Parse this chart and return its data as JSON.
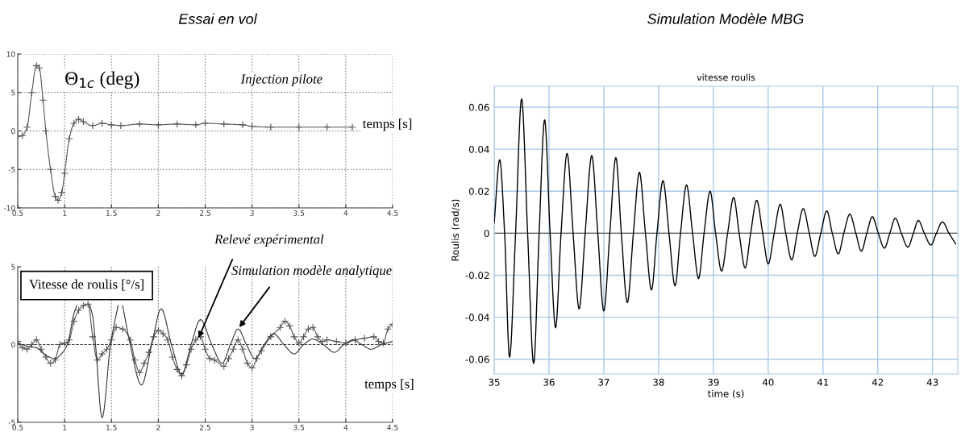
{
  "chart_data": [
    {
      "type": "line",
      "title": "Essai en vol",
      "xlim": [
        0.5,
        4.5
      ],
      "xticks": [
        0.5,
        1,
        1.5,
        2,
        2.5,
        3,
        3.5,
        4,
        4.5
      ],
      "ylim": [
        -10,
        10
      ],
      "yticks": [
        -10,
        -5,
        0,
        5,
        10
      ],
      "grid": true,
      "annotations": [
        "Θ$_{1c}$ (deg)",
        "Injection pilote",
        "temps [s]"
      ],
      "series": [
        {
          "color": "#555555",
          "marker": "cross",
          "x": [
            0.5,
            0.55,
            0.6,
            0.65,
            0.7,
            0.73,
            0.77,
            0.8,
            0.85,
            0.9,
            0.93,
            0.97,
            1.0,
            1.05,
            1.1,
            1.15,
            1.2,
            1.3,
            1.4,
            1.5,
            1.6,
            1.8,
            2.0,
            2.2,
            2.4,
            2.5,
            2.7,
            2.9,
            3.0,
            3.2,
            3.5,
            3.8,
            4.07
          ],
          "values": [
            -0.7,
            -0.6,
            0.5,
            5,
            8.5,
            8.2,
            4,
            0,
            -5,
            -8.5,
            -9,
            -8,
            -5.5,
            -1,
            1.0,
            1.5,
            1.2,
            0.7,
            1.0,
            0.8,
            0.7,
            0.9,
            0.8,
            0.9,
            0.8,
            1.0,
            0.9,
            0.8,
            0.6,
            0.5,
            0.5,
            0.5,
            0.5
          ]
        }
      ]
    },
    {
      "type": "line",
      "xlim": [
        0.5,
        4.5
      ],
      "xticks": [
        0.5,
        1,
        1.5,
        2,
        2.5,
        3,
        3.5,
        4,
        4.5
      ],
      "ylim": [
        -5,
        5
      ],
      "yticks": [
        -5,
        0,
        5
      ],
      "grid": "x",
      "ref_lines": [
        {
          "axis": "y",
          "value": 0,
          "color": "#333333",
          "line_style": "dashed"
        }
      ],
      "annotations": [
        "Vitesse de roulis [°/s]",
        "temps [s]",
        {
          "text": "Relevé expérimental",
          "x": 2.42,
          "y": 0.3
        },
        {
          "text": "Simulation modèle analytique",
          "x": 2.85,
          "y": 1.0
        }
      ],
      "series": [
        {
          "color": "#555555",
          "marker": "cross",
          "x": [
            0.5,
            0.55,
            0.6,
            0.65,
            0.7,
            0.75,
            0.8,
            0.85,
            0.9,
            0.95,
            1.0,
            1.05,
            1.1,
            1.15,
            1.2,
            1.25,
            1.3,
            1.35,
            1.4,
            1.45,
            1.5,
            1.55,
            1.62,
            1.7,
            1.75,
            1.8,
            1.85,
            1.9,
            1.95,
            2.0,
            2.05,
            2.1,
            2.15,
            2.2,
            2.25,
            2.3,
            2.35,
            2.4,
            2.45,
            2.5,
            2.55,
            2.6,
            2.7,
            2.75,
            2.8,
            2.85,
            2.9,
            2.95,
            3.0,
            3.05,
            3.1,
            3.2,
            3.3,
            3.35,
            3.4,
            3.45,
            3.5,
            3.55,
            3.6,
            3.65,
            3.7,
            3.75,
            3.8,
            3.9,
            4.0,
            4.1,
            4.2,
            4.3,
            4.35,
            4.4,
            4.45,
            4.5
          ],
          "values": [
            0.2,
            -0.2,
            -0.3,
            0,
            0.3,
            -0.3,
            -0.8,
            -1.2,
            -1.0,
            0,
            0.1,
            0.3,
            1.5,
            2.2,
            2.5,
            2.6,
            0.5,
            -1.0,
            -0.6,
            -0.3,
            0.3,
            1.1,
            1.0,
            0.3,
            -1.0,
            -1.8,
            -1.2,
            -0.5,
            0.5,
            0.9,
            0.7,
            0.3,
            -0.8,
            -1.6,
            -2.0,
            -1.3,
            -0.3,
            0.3,
            0.5,
            -0.3,
            -0.9,
            -1.0,
            -1.4,
            -0.9,
            -0.3,
            0.3,
            -0.3,
            -1.2,
            -1.5,
            -0.9,
            -0.4,
            0.5,
            1.1,
            1.5,
            1.2,
            0.5,
            0.1,
            0.5,
            1.0,
            1.1,
            0.5,
            0.2,
            0.3,
            0.2,
            0.1,
            0.3,
            0.4,
            0.5,
            0.2,
            0.1,
            1.0,
            1.3
          ]
        },
        {
          "color": "#333333",
          "marker": "none",
          "x": [
            0.5,
            0.6,
            0.7,
            0.8,
            0.9,
            0.98,
            1.03,
            1.1,
            1.13,
            1.2,
            1.27,
            1.3,
            1.33,
            1.4,
            1.49,
            1.57,
            1.6,
            1.62,
            1.7,
            1.82,
            1.93,
            2.03,
            2.14,
            2.25,
            2.35,
            2.45,
            2.57,
            2.68,
            2.77,
            2.85,
            2.94,
            3.03,
            3.13,
            3.23,
            3.34,
            3.45,
            3.55,
            3.65,
            3.76,
            3.88,
            3.98,
            4.08,
            4.17,
            4.27,
            4.38,
            4.5
          ],
          "values": [
            0.1,
            -0.1,
            -0.2,
            -0.7,
            -0.9,
            -0.5,
            0,
            2.0,
            2.5,
            null,
            2.5,
            1.8,
            0,
            -4.7,
            0,
            2.5,
            null,
            2.5,
            0,
            -2.6,
            0,
            2.3,
            0,
            -1.9,
            0,
            1.6,
            0,
            -1.2,
            0,
            1.0,
            0,
            -0.9,
            0,
            0.7,
            0,
            -0.6,
            0,
            0.35,
            0,
            -0.5,
            0,
            0.3,
            0,
            -0.3,
            0,
            0.2
          ]
        }
      ]
    },
    {
      "type": "line",
      "title": "Simulation Modèle MBG",
      "subtitle": "vitesse roulis",
      "xlabel": "time (s)",
      "ylabel": "Roulis (rad/s)",
      "xlim": [
        35,
        43.46
      ],
      "xticks": [
        35,
        36,
        37,
        38,
        39,
        40,
        41,
        42,
        43
      ],
      "ylim": [
        -0.067,
        0.07
      ],
      "yticks": [
        -0.06,
        -0.04,
        -0.02,
        0,
        0.02,
        0.04,
        0.06
      ],
      "grid": true,
      "ref_lines": [
        {
          "axis": "y",
          "value": 0,
          "color": "#555555",
          "line_style": "solid"
        }
      ],
      "series": [
        {
          "color": "#000000",
          "marker": "none",
          "x": [
            35.0,
            35.1,
            35.19,
            35.28,
            35.39,
            35.5,
            35.61,
            35.72,
            35.82,
            35.92,
            36.02,
            36.12,
            36.22,
            36.33,
            36.44,
            36.55,
            36.66,
            36.78,
            36.89,
            37.0,
            37.11,
            37.22,
            37.32,
            37.43,
            37.54,
            37.65,
            37.76,
            37.87,
            37.97,
            38.08,
            38.19,
            38.3,
            38.4,
            38.51,
            38.62,
            38.73,
            38.83,
            38.94,
            39.04,
            39.15,
            39.26,
            39.37,
            39.47,
            39.58,
            39.68,
            39.79,
            39.9,
            40.0,
            40.11,
            40.22,
            40.32,
            40.43,
            40.53,
            40.64,
            40.75,
            40.85,
            40.96,
            41.07,
            41.17,
            41.28,
            41.38,
            41.49,
            41.6,
            41.7,
            41.8,
            41.9,
            42.01,
            42.12,
            42.22,
            42.32,
            42.43,
            42.55,
            42.65,
            42.74,
            42.85,
            42.97,
            43.07,
            43.18,
            43.3,
            43.42
          ],
          "values": [
            0.005,
            0.035,
            0,
            -0.059,
            0,
            0.064,
            0,
            -0.062,
            0,
            0.054,
            0,
            -0.045,
            0,
            0.038,
            0,
            -0.036,
            0,
            0.037,
            0,
            -0.037,
            0,
            0.036,
            0,
            -0.033,
            0,
            0.029,
            0,
            -0.027,
            0,
            0.025,
            0,
            -0.025,
            0,
            0.023,
            0,
            -0.0215,
            0,
            0.02,
            0,
            -0.018,
            0,
            0.017,
            0,
            -0.0165,
            0,
            0.0157,
            0,
            -0.0146,
            0,
            0.0138,
            0,
            -0.0127,
            0,
            0.0117,
            0,
            -0.011,
            0,
            0.0106,
            0,
            -0.0098,
            0,
            0.0091,
            0,
            -0.0085,
            0,
            0.0079,
            0,
            -0.0071,
            0,
            0.0072,
            0,
            -0.0066,
            0,
            0.0061,
            0,
            -0.0056,
            0,
            0.0054,
            0,
            -0.005
          ]
        }
      ]
    }
  ]
}
